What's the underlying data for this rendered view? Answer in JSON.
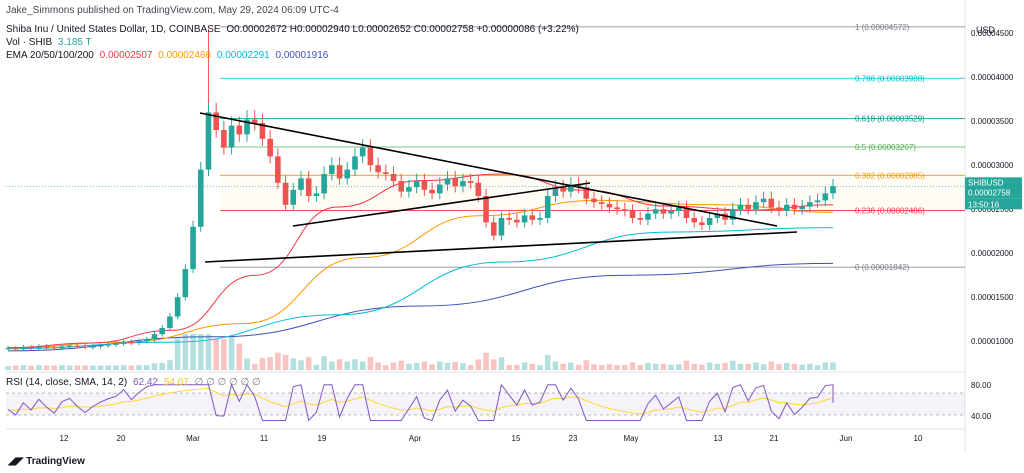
{
  "header": {
    "published": "Jake_Simmons published on TradingView.com, May 29, 2024 06:09 UTC-4",
    "title": "Shiba Inu / United States Dollar, 1D, COINBASE",
    "ohlc": "O0.00002672 H0.00002940 L0.00002652 C0.00002758 +0.00000086 (+3.22%)",
    "vol_label": "Vol · SHIB",
    "vol_value": "3.185 T",
    "ema_label": "EMA 20/50/100/200",
    "ema_values": [
      "0.00002507",
      "0.00002466",
      "0.00002291",
      "0.00001916"
    ],
    "rsi_label": "RSI (14, close, SMA, 14, 2)",
    "rsi_values": [
      "62.42",
      "54.07"
    ],
    "rsi_flags": "∅ ∅ ∅ ∅ ∅ ∅"
  },
  "axis": {
    "currency": "USD",
    "price_ticks": [
      "0.00004500",
      "0.00004000",
      "0.00003500",
      "0.00003000",
      "0.00002500",
      "0.00002000",
      "0.00001500",
      "0.00001000"
    ],
    "rsi_ticks": [
      "80.00",
      "40.00"
    ],
    "date_ticks": [
      "12",
      "20",
      "Mar",
      "11",
      "19",
      "Apr",
      "15",
      "23",
      "May",
      "13",
      "21",
      "Jun",
      "10"
    ],
    "last_symbol": "SHIBUSD",
    "last_price": "0.00002758",
    "countdown": "13:50:16"
  },
  "colors": {
    "up": "#26a69a",
    "down": "#ef5350",
    "ema20": "#f23645",
    "ema50": "#ff9800",
    "ema100": "#00bcd4",
    "ema200": "#3f51b5",
    "rsi": "#7e57c2",
    "rsi_ma": "#fdd835"
  },
  "fibonacci": [
    {
      "level": "1",
      "price": "0.00004572",
      "color": "#787b86",
      "value": 4.572e-05
    },
    {
      "level": "0.786",
      "price": "0.00003988",
      "color": "#00bcd4",
      "value": 3.988e-05
    },
    {
      "level": "0.618",
      "price": "0.00003529",
      "color": "#009688",
      "value": 3.529e-05
    },
    {
      "level": "0.5",
      "price": "0.00003207",
      "color": "#4caf50",
      "value": 3.207e-05
    },
    {
      "level": "0.382",
      "price": "0.00002885",
      "color": "#ff9800",
      "value": 2.885e-05
    },
    {
      "level": "0.236",
      "price": "0.00002486",
      "color": "#f23645",
      "value": 2.486e-05
    },
    {
      "level": "0",
      "price": "0.00001842",
      "color": "#787b86",
      "value": 1.842e-05
    }
  ],
  "chart_data": {
    "type": "candlestick",
    "title": "Shiba Inu / United States Dollar, 1D, COINBASE",
    "ylabel": "USD",
    "ylim": [
      6.5e-06,
      4.65e-05
    ],
    "x_range": [
      "2024-02-04",
      "2024-06-14"
    ],
    "close_series": [
      9.2e-06,
      9.1e-06,
      9.3e-06,
      9.2e-06,
      9.4e-06,
      9.3e-06,
      9.2e-06,
      9.4e-06,
      9.5e-06,
      9.4e-06,
      9.3e-06,
      9.4e-06,
      9.5e-06,
      9.6e-06,
      9.7e-06,
      9.9e-06,
      9.8e-06,
      1e-05,
      1.02e-05,
      1.08e-05,
      1.15e-05,
      1.28e-05,
      1.5e-05,
      1.82e-05,
      2.3e-05,
      2.95e-05,
      3.6e-05,
      3.4e-05,
      3.2e-05,
      3.45e-05,
      3.35e-05,
      3.52e-05,
      3.48e-05,
      3.3e-05,
      3.1e-05,
      2.8e-05,
      2.55e-05,
      2.72e-05,
      2.85e-05,
      2.65e-05,
      2.68e-05,
      2.9e-05,
      3e-05,
      2.85e-05,
      2.95e-05,
      3.1e-05,
      3.2e-05,
      3e-05,
      2.92e-05,
      2.9e-05,
      2.82e-05,
      2.7e-05,
      2.75e-05,
      2.82e-05,
      2.72e-05,
      2.68e-05,
      2.78e-05,
      2.85e-05,
      2.76e-05,
      2.82e-05,
      2.8e-05,
      2.65e-05,
      2.35e-05,
      2.2e-05,
      2.4e-05,
      2.38e-05,
      2.35e-05,
      2.43e-05,
      2.38e-05,
      2.4e-05,
      2.65e-05,
      2.75e-05,
      2.7e-05,
      2.78e-05,
      2.75e-05,
      2.62e-05,
      2.58e-05,
      2.56e-05,
      2.52e-05,
      2.5e-05,
      2.48e-05,
      2.4e-05,
      2.38e-05,
      2.45e-05,
      2.5e-05,
      2.45e-05,
      2.48e-05,
      2.52e-05,
      2.4e-05,
      2.35e-05,
      2.32e-05,
      2.4e-05,
      2.45e-05,
      2.38e-05,
      2.5e-05,
      2.55e-05,
      2.5e-05,
      2.58e-05,
      2.62e-05,
      2.52e-05,
      2.48e-05,
      2.55e-05,
      2.5e-05,
      2.53e-05,
      2.58e-05,
      2.6e-05,
      2.68e-05,
      2.76e-05
    ],
    "ema20": [
      [
        9.2e-06,
        9.3e-06
      ],
      [
        1e-05,
        9.6e-06
      ],
      [
        1.2e-05,
        1.05e-05
      ],
      [
        1.8e-05,
        1.7e-05
      ],
      [
        2.5e-05,
        2.55e-05
      ],
      [
        2.7e-05,
        2.95e-05
      ],
      [
        2.9e-05,
        2.9e-05
      ],
      [
        2.78e-05,
        2.65e-05
      ],
      [
        2.55e-05,
        2.52e-05
      ],
      [
        2.5e-05,
        2.48e-05
      ],
      [
        2.6e-05,
        2.5e-05
      ]
    ],
    "ema50": [
      [
        9.2e-06,
        9.3e-06
      ],
      [
        1e-05,
        9.8e-06
      ],
      [
        1.2e-05,
        1.2e-05
      ],
      [
        1.8e-05,
        2.1e-05
      ],
      [
        2.4e-05,
        2.45e-05
      ],
      [
        2.58e-05,
        2.62e-05
      ],
      [
        2.6e-05,
        2.5e-05
      ],
      [
        2.47e-05,
        2.46e-05
      ]
    ],
    "ema100": [
      [
        9.1e-06,
        9.2e-06
      ],
      [
        1e-05,
        9.8e-06
      ],
      [
        1.2e-05,
        1.4e-05
      ],
      [
        1.8e-05,
        2e-05
      ],
      [
        2.2e-05,
        2.28e-05
      ],
      [
        2.29e-05,
        2.29e-05
      ]
    ],
    "ema200": [
      [
        8.8e-06,
        9e-06
      ],
      [
        1e-05,
        1.1e-05
      ],
      [
        1.3e-05,
        1.5e-05
      ],
      [
        1.7e-05,
        1.8e-05
      ],
      [
        1.85e-05,
        1.92e-05
      ]
    ],
    "trendlines": [
      "upper triangle resistance",
      "lower triangle support",
      "rising support",
      "long-term support"
    ],
    "rsi": {
      "upper_band": 80,
      "lower_band": 40,
      "last": 62.42,
      "ma": 54.07
    }
  }
}
